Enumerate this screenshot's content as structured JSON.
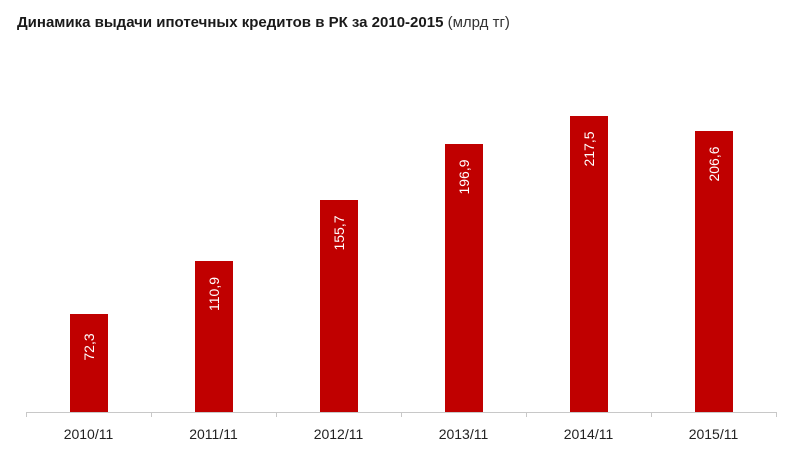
{
  "chart_data": {
    "type": "bar",
    "title": "Динамика выдачи ипотечных кредитов в РК за 2010-2015",
    "title_unit": "(млрд тг)",
    "categories": [
      "2010/11",
      "2011/11",
      "2012/11",
      "2013/11",
      "2014/11",
      "2015/11"
    ],
    "values": [
      72.3,
      110.9,
      155.7,
      196.9,
      217.5,
      206.6
    ],
    "data_labels": [
      "72,3",
      "110,9",
      "155,7",
      "196,9",
      "217,5",
      "206,6"
    ],
    "xlabel": "",
    "ylabel": "",
    "ylim": [
      0,
      300
    ],
    "grid": false,
    "legend": null,
    "bar_color": "#c00000",
    "label_color": "#ffffff"
  }
}
